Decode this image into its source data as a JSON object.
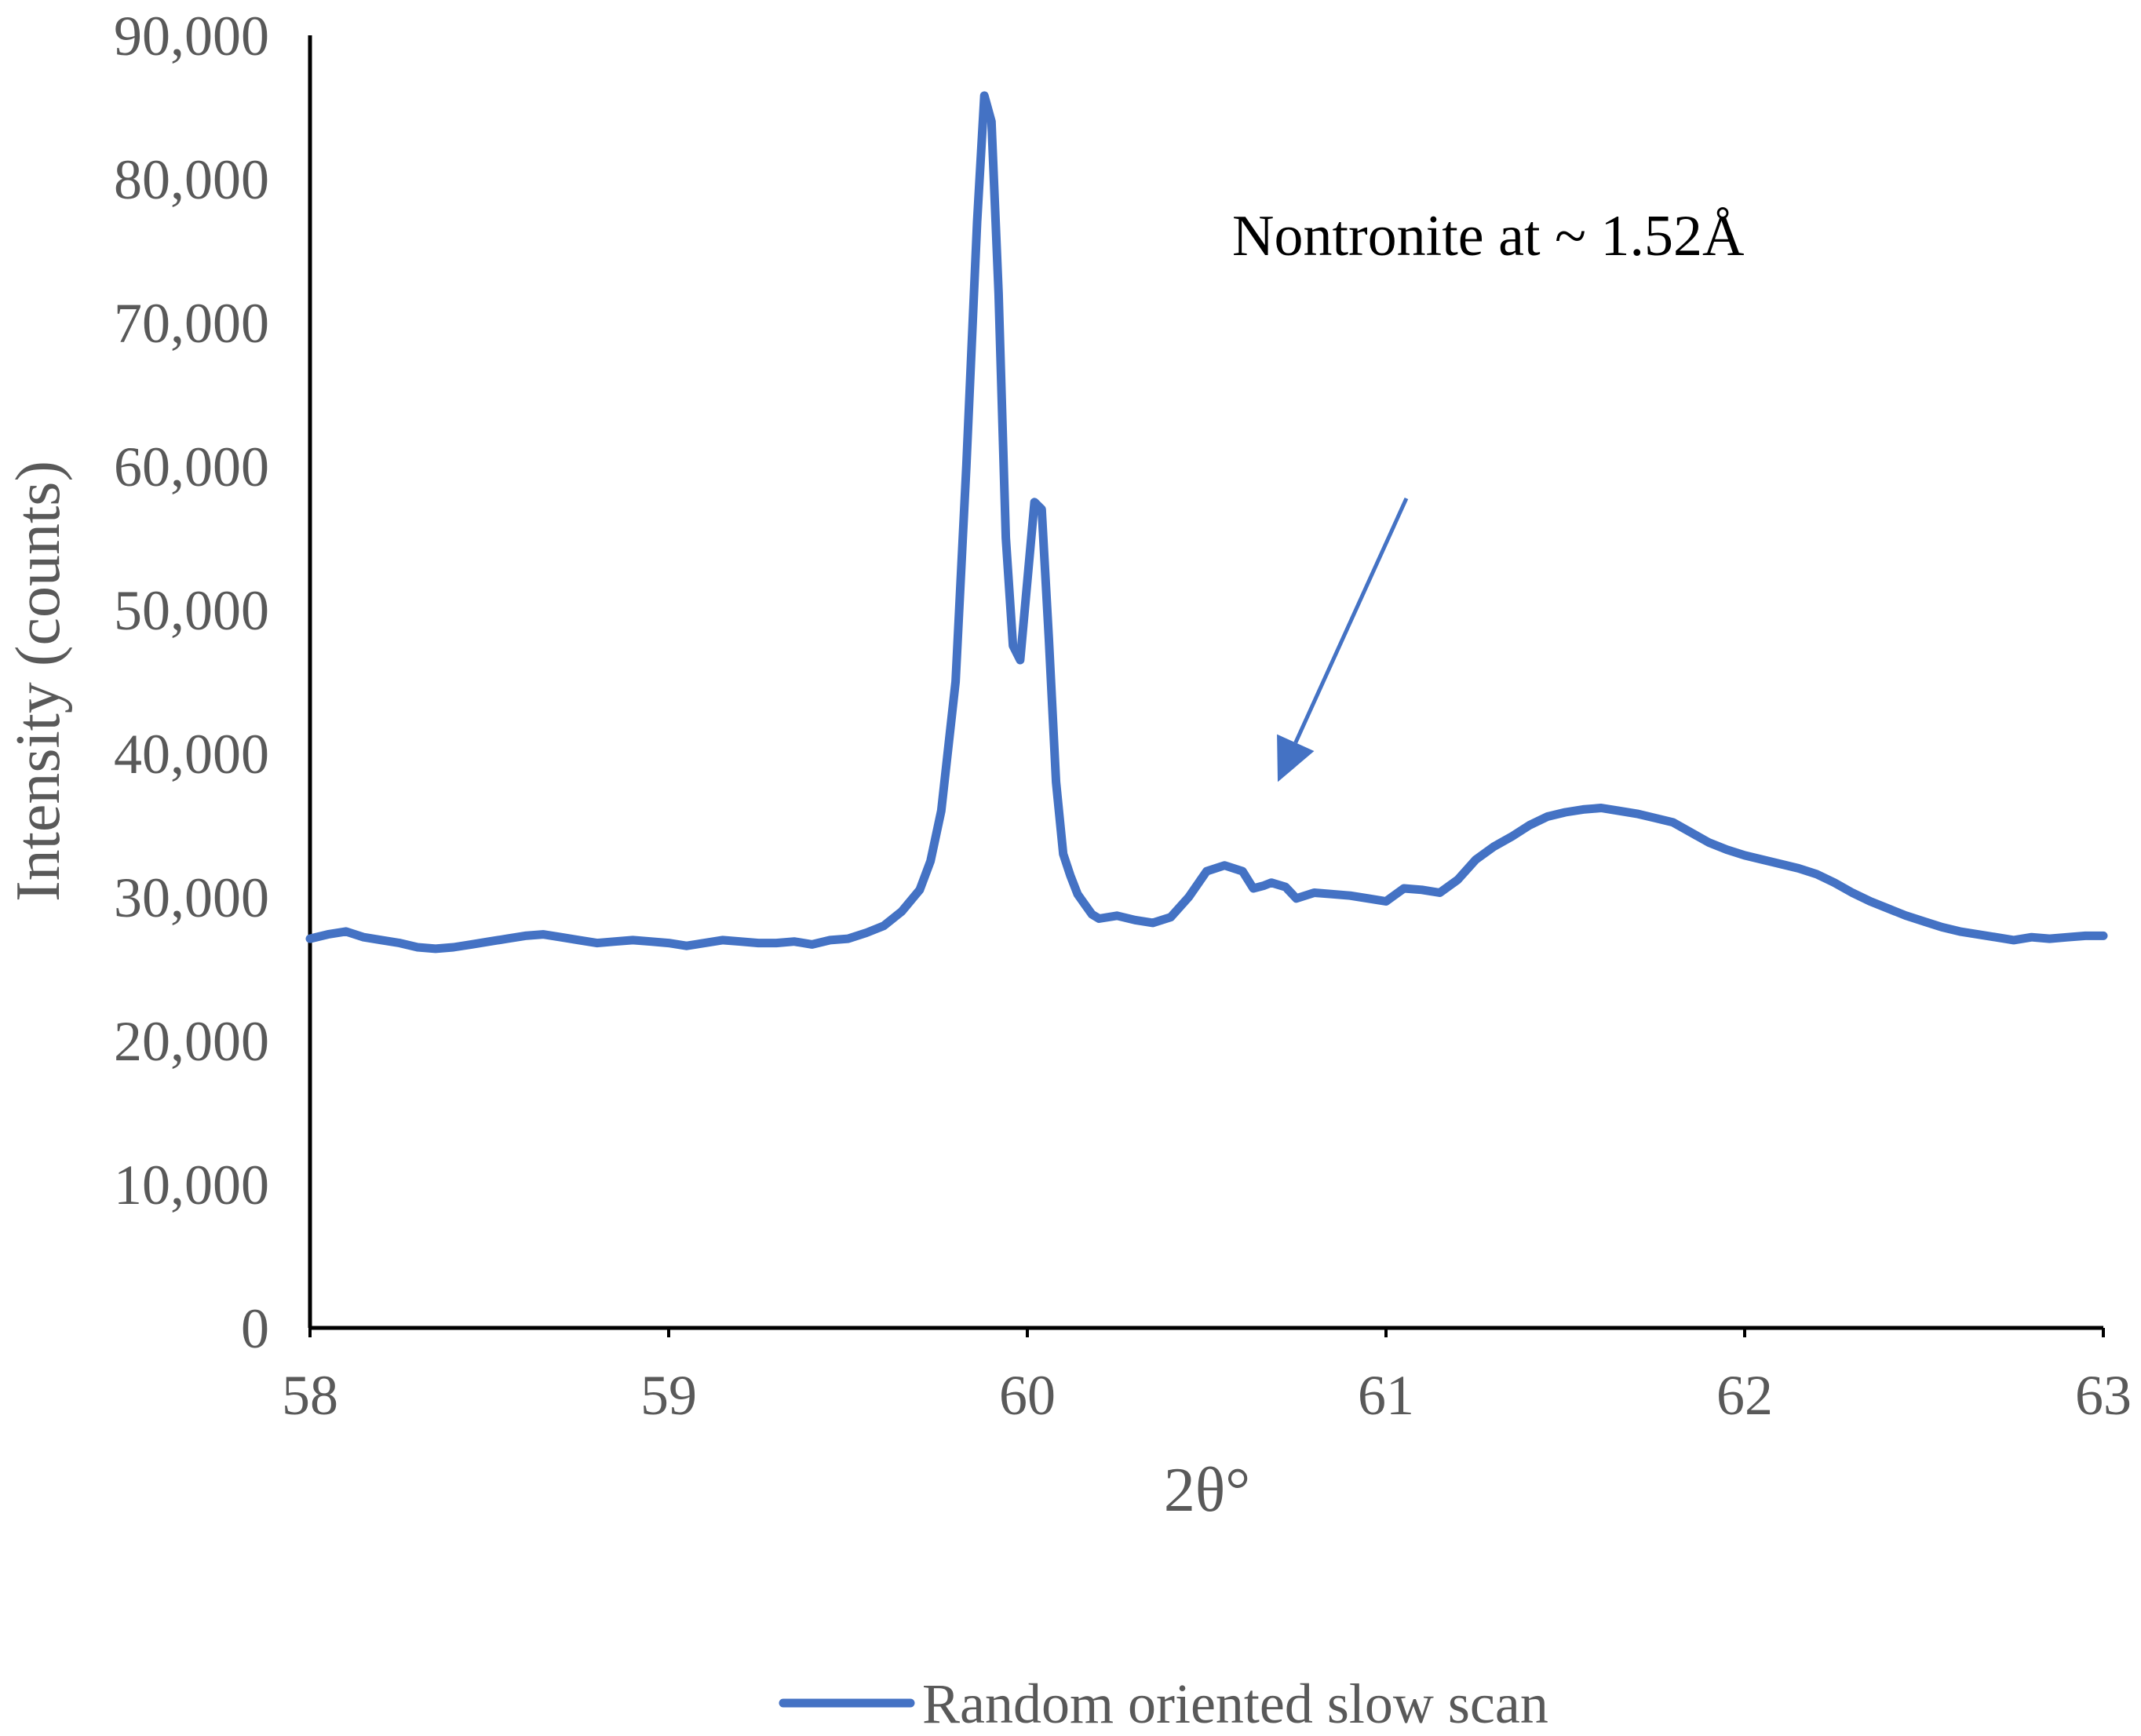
{
  "chart_data": {
    "type": "line",
    "title": "",
    "xlabel": "2θ°",
    "ylabel": "Intensity (counts)",
    "xlim": [
      58,
      63
    ],
    "ylim": [
      0,
      90000
    ],
    "x_ticks": [
      "58",
      "59",
      "60",
      "61",
      "62",
      "63"
    ],
    "y_ticks": [
      "0",
      "10,000",
      "20,000",
      "30,000",
      "40,000",
      "50,000",
      "60,000",
      "70,000",
      "80,000",
      "90,000"
    ],
    "grid": false,
    "legend_position": "bottom",
    "annotation": {
      "text": "Nontronite at ~ 1.52Å",
      "points_to": {
        "x": 60.72,
        "y": 32000
      }
    },
    "series": [
      {
        "name": "Random oriented slow scan",
        "color": "#4472C4",
        "x": [
          58.0,
          58.05,
          58.1,
          58.15,
          58.2,
          58.25,
          58.3,
          58.35,
          58.4,
          58.45,
          58.5,
          58.55,
          58.6,
          58.65,
          58.7,
          58.75,
          58.8,
          58.85,
          58.9,
          58.95,
          59.0,
          59.05,
          59.1,
          59.15,
          59.2,
          59.25,
          59.3,
          59.35,
          59.4,
          59.45,
          59.5,
          59.55,
          59.6,
          59.65,
          59.7,
          59.73,
          59.76,
          59.8,
          59.83,
          59.86,
          59.88,
          59.9,
          59.92,
          59.94,
          59.96,
          59.98,
          60.0,
          60.02,
          60.04,
          60.06,
          60.08,
          60.1,
          60.12,
          60.14,
          60.16,
          60.18,
          60.2,
          60.25,
          60.3,
          60.35,
          60.4,
          60.45,
          60.5,
          60.55,
          60.6,
          60.63,
          60.66,
          60.68,
          60.72,
          60.75,
          60.8,
          60.85,
          60.9,
          60.95,
          61.0,
          61.05,
          61.1,
          61.15,
          61.2,
          61.25,
          61.3,
          61.35,
          61.4,
          61.45,
          61.5,
          61.55,
          61.6,
          61.65,
          61.7,
          61.75,
          61.8,
          61.85,
          61.9,
          61.95,
          62.0,
          62.05,
          62.1,
          62.15,
          62.2,
          62.25,
          62.3,
          62.35,
          62.4,
          62.45,
          62.5,
          62.55,
          62.6,
          62.65,
          62.7,
          62.75,
          62.8,
          62.85,
          62.9,
          62.95,
          63.0
        ],
        "y": [
          27100,
          27400,
          27600,
          27200,
          27000,
          26800,
          26500,
          26400,
          26500,
          26700,
          26900,
          27100,
          27300,
          27400,
          27200,
          27000,
          26800,
          26900,
          27000,
          26900,
          26800,
          26600,
          26800,
          27000,
          26900,
          26800,
          26800,
          26900,
          26700,
          27000,
          27100,
          27500,
          28000,
          29000,
          30500,
          32500,
          36000,
          45000,
          60000,
          77000,
          85800,
          84000,
          72000,
          55000,
          47500,
          46500,
          52000,
          57500,
          57000,
          48000,
          38000,
          33000,
          31500,
          30200,
          29500,
          28800,
          28500,
          28700,
          28400,
          28200,
          28600,
          30000,
          31800,
          32200,
          31800,
          30600,
          30800,
          31000,
          30700,
          29900,
          30300,
          30200,
          30100,
          29900,
          29700,
          30600,
          30500,
          30300,
          31200,
          32600,
          33500,
          34200,
          35000,
          35600,
          35900,
          36100,
          36200,
          36000,
          35800,
          35500,
          35200,
          34500,
          33800,
          33300,
          32900,
          32600,
          32300,
          32000,
          31600,
          31000,
          30300,
          29700,
          29200,
          28700,
          28300,
          27900,
          27600,
          27400,
          27200,
          27000,
          27200,
          27100,
          27200,
          27300,
          27300
        ]
      }
    ]
  }
}
